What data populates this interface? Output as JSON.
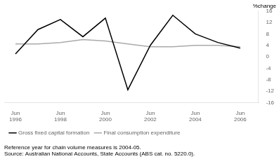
{
  "chart_data": {
    "type": "line",
    "title": "%change",
    "x": [
      1996,
      1997,
      1998,
      1999,
      2000,
      2001,
      2002,
      2003,
      2004,
      2005,
      2006
    ],
    "series": [
      {
        "name": "Gross fixed capital formation",
        "color": "#000000",
        "values": [
          1.0,
          9.5,
          13.0,
          7.0,
          13.5,
          -11.5,
          4.0,
          14.5,
          8.0,
          5.0,
          3.0
        ]
      },
      {
        "name": "Final consumption expenditure",
        "color": "#aaaaaa",
        "values": [
          4.5,
          4.5,
          5.0,
          6.0,
          5.5,
          4.5,
          3.5,
          3.5,
          4.0,
          4.0,
          3.5
        ]
      }
    ],
    "xlim": [
      1995.5,
      2006.8
    ],
    "xticks": [
      {
        "value": 1996,
        "label": "Jun\n1996"
      },
      {
        "value": 1998,
        "label": "Jun\n1998"
      },
      {
        "value": 2000,
        "label": "Jun\n2000"
      },
      {
        "value": 2002,
        "label": "Jun\n2002"
      },
      {
        "value": 2004,
        "label": "Jun\n2004"
      },
      {
        "value": 2006,
        "label": "Jun\n2006"
      }
    ],
    "ylim": [
      -16,
      16
    ],
    "yticks": [
      -16,
      -12,
      -8,
      -4,
      0,
      4,
      8,
      12,
      16
    ],
    "grid": false,
    "legend": "lower left",
    "annotations": [
      "Reference year for chain volume measures is 2004-05.",
      "Source: Australian National Accounts, State Accounts (ABS cat. no. 5220.0)."
    ]
  }
}
